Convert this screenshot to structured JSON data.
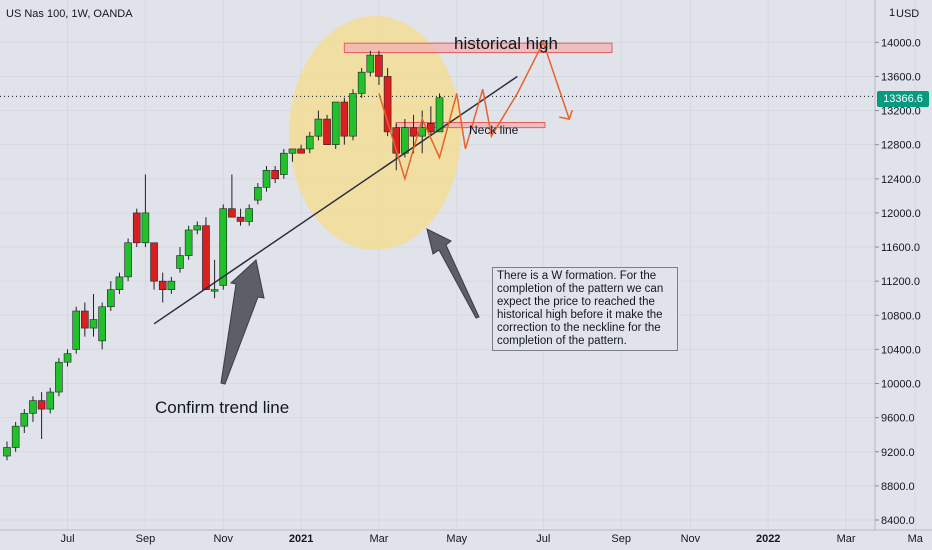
{
  "header": {
    "symbol": "US Nas 100, 1W, OANDA",
    "currency": "USD",
    "last_price": "13366.6"
  },
  "annotations": {
    "historical_high": "historical high",
    "neck_line": "Neck line",
    "trend_line": "Confirm trend line",
    "note": "There is a W formation. For the completion of the pattern we can expect the price to reached the historical high before it make the correction to the neckline for the completion of the pattern."
  },
  "colors": {
    "background": "#e1e3eb",
    "up_candle": "#22c02a",
    "down_candle": "#d92020",
    "zone_fill": "#f0b0b0",
    "zone_border": "#e06060",
    "circle_fill": "#f5dc8a",
    "projection": "#e8622a",
    "arrow": "#5c5f66",
    "last_price_tag": "#089981"
  },
  "chart_data": {
    "type": "candlestick",
    "symbol": "US Nas 100",
    "interval": "1W",
    "source": "OANDA",
    "y_ticks": [
      8400,
      8800,
      9200,
      9600,
      10000,
      10400,
      10800,
      11200,
      11600,
      12000,
      12400,
      12800,
      13200,
      13600,
      14000
    ],
    "y_tick_labels": [
      "8400.0",
      "8800.0",
      "9200.0",
      "9600.0",
      "10000.0",
      "10400.0",
      "10800.0",
      "11200.0",
      "11600.0",
      "12000.0",
      "12400.0",
      "12800.0",
      "13200.0",
      "13600.0",
      "14000.0"
    ],
    "x_labels": [
      "Jul",
      "Sep",
      "Nov",
      "2021",
      "Mar",
      "May",
      "Jul",
      "Sep",
      "Nov",
      "2022",
      "Mar",
      "Ma"
    ],
    "x_label_weeks": [
      7,
      16,
      25,
      34,
      43,
      52,
      62,
      71,
      79,
      88,
      97,
      105
    ],
    "ylim": [
      8250,
      14450
    ],
    "last_price": 13366.6,
    "candles": [
      {
        "o": 9150,
        "h": 9320,
        "l": 9100,
        "c": 9250
      },
      {
        "o": 9250,
        "h": 9550,
        "l": 9200,
        "c": 9500
      },
      {
        "o": 9500,
        "h": 9700,
        "l": 9420,
        "c": 9650
      },
      {
        "o": 9650,
        "h": 9850,
        "l": 9550,
        "c": 9800
      },
      {
        "o": 9800,
        "h": 9900,
        "l": 9350,
        "c": 9700
      },
      {
        "o": 9700,
        "h": 9950,
        "l": 9650,
        "c": 9900
      },
      {
        "o": 9900,
        "h": 10300,
        "l": 9850,
        "c": 10250
      },
      {
        "o": 10250,
        "h": 10400,
        "l": 10200,
        "c": 10350
      },
      {
        "o": 10400,
        "h": 10900,
        "l": 10350,
        "c": 10850
      },
      {
        "o": 10850,
        "h": 10950,
        "l": 10550,
        "c": 10650
      },
      {
        "o": 10650,
        "h": 11050,
        "l": 10550,
        "c": 10750
      },
      {
        "o": 10500,
        "h": 10950,
        "l": 10400,
        "c": 10900
      },
      {
        "o": 10900,
        "h": 11200,
        "l": 10850,
        "c": 11100
      },
      {
        "o": 11100,
        "h": 11300,
        "l": 11050,
        "c": 11250
      },
      {
        "o": 11250,
        "h": 11700,
        "l": 11200,
        "c": 11650
      },
      {
        "o": 12000,
        "h": 12050,
        "l": 11600,
        "c": 11650
      },
      {
        "o": 11650,
        "h": 12450,
        "l": 11600,
        "c": 12000
      },
      {
        "o": 11650,
        "h": 11650,
        "l": 11100,
        "c": 11200
      },
      {
        "o": 11200,
        "h": 11300,
        "l": 10950,
        "c": 11100
      },
      {
        "o": 11100,
        "h": 11250,
        "l": 11050,
        "c": 11200
      },
      {
        "o": 11350,
        "h": 11600,
        "l": 11300,
        "c": 11500
      },
      {
        "o": 11500,
        "h": 11850,
        "l": 11450,
        "c": 11800
      },
      {
        "o": 11800,
        "h": 11900,
        "l": 11750,
        "c": 11850
      },
      {
        "o": 11850,
        "h": 11950,
        "l": 11150,
        "c": 11100
      },
      {
        "o": 11100,
        "h": 11450,
        "l": 11000,
        "c": 11100
      },
      {
        "o": 11150,
        "h": 12100,
        "l": 11100,
        "c": 12050
      },
      {
        "o": 12050,
        "h": 12450,
        "l": 11950,
        "c": 11950
      },
      {
        "o": 11950,
        "h": 12050,
        "l": 11850,
        "c": 11900
      },
      {
        "o": 11900,
        "h": 12100,
        "l": 11850,
        "c": 12050
      },
      {
        "o": 12150,
        "h": 12350,
        "l": 12100,
        "c": 12300
      },
      {
        "o": 12300,
        "h": 12550,
        "l": 12250,
        "c": 12500
      },
      {
        "o": 12500,
        "h": 12550,
        "l": 12350,
        "c": 12400
      },
      {
        "o": 12450,
        "h": 12750,
        "l": 12400,
        "c": 12700
      },
      {
        "o": 12700,
        "h": 12750,
        "l": 12600,
        "c": 12750
      },
      {
        "o": 12750,
        "h": 12800,
        "l": 12700,
        "c": 12700
      },
      {
        "o": 12750,
        "h": 12950,
        "l": 12700,
        "c": 12900
      },
      {
        "o": 12900,
        "h": 13200,
        "l": 12850,
        "c": 13100
      },
      {
        "o": 13100,
        "h": 13150,
        "l": 12800,
        "c": 12800
      },
      {
        "o": 12800,
        "h": 13300,
        "l": 12750,
        "c": 13300
      },
      {
        "o": 13300,
        "h": 13350,
        "l": 12800,
        "c": 12900
      },
      {
        "o": 12900,
        "h": 13450,
        "l": 12850,
        "c": 13400
      },
      {
        "o": 13400,
        "h": 13700,
        "l": 13350,
        "c": 13650
      },
      {
        "o": 13650,
        "h": 13900,
        "l": 13600,
        "c": 13850
      },
      {
        "o": 13850,
        "h": 13900,
        "l": 13500,
        "c": 13600
      },
      {
        "o": 13600,
        "h": 13700,
        "l": 12900,
        "c": 12950
      },
      {
        "o": 13000,
        "h": 13050,
        "l": 12500,
        "c": 12700
      },
      {
        "o": 12700,
        "h": 13100,
        "l": 12650,
        "c": 13000
      },
      {
        "o": 13000,
        "h": 13150,
        "l": 12700,
        "c": 12900
      },
      {
        "o": 12900,
        "h": 13200,
        "l": 12700,
        "c": 13000
      },
      {
        "o": 13050,
        "h": 13250,
        "l": 12900,
        "c": 12950
      },
      {
        "o": 12950,
        "h": 13400,
        "l": 12950,
        "c": 13350
      }
    ],
    "horizontal_zones": [
      {
        "label": "historical high",
        "from": 13880,
        "to": 13990
      },
      {
        "label": "Neck line",
        "from": 13000,
        "to": 13060
      }
    ],
    "trend_line": {
      "from": {
        "week": 17,
        "price": 10700
      },
      "to": {
        "week": 59,
        "price": 13600
      }
    },
    "projection_path": [
      {
        "week": 43,
        "price": 13400
      },
      {
        "week": 46,
        "price": 12400
      },
      {
        "week": 48,
        "price": 13100
      },
      {
        "week": 50,
        "price": 12650
      },
      {
        "week": 52,
        "price": 13400
      },
      {
        "week": 53,
        "price": 12750
      },
      {
        "week": 55,
        "price": 13450
      },
      {
        "week": 56,
        "price": 12900
      },
      {
        "week": 59,
        "price": 13400
      },
      {
        "week": 62,
        "price": 14000
      },
      {
        "week": 65,
        "price": 13100
      }
    ]
  }
}
